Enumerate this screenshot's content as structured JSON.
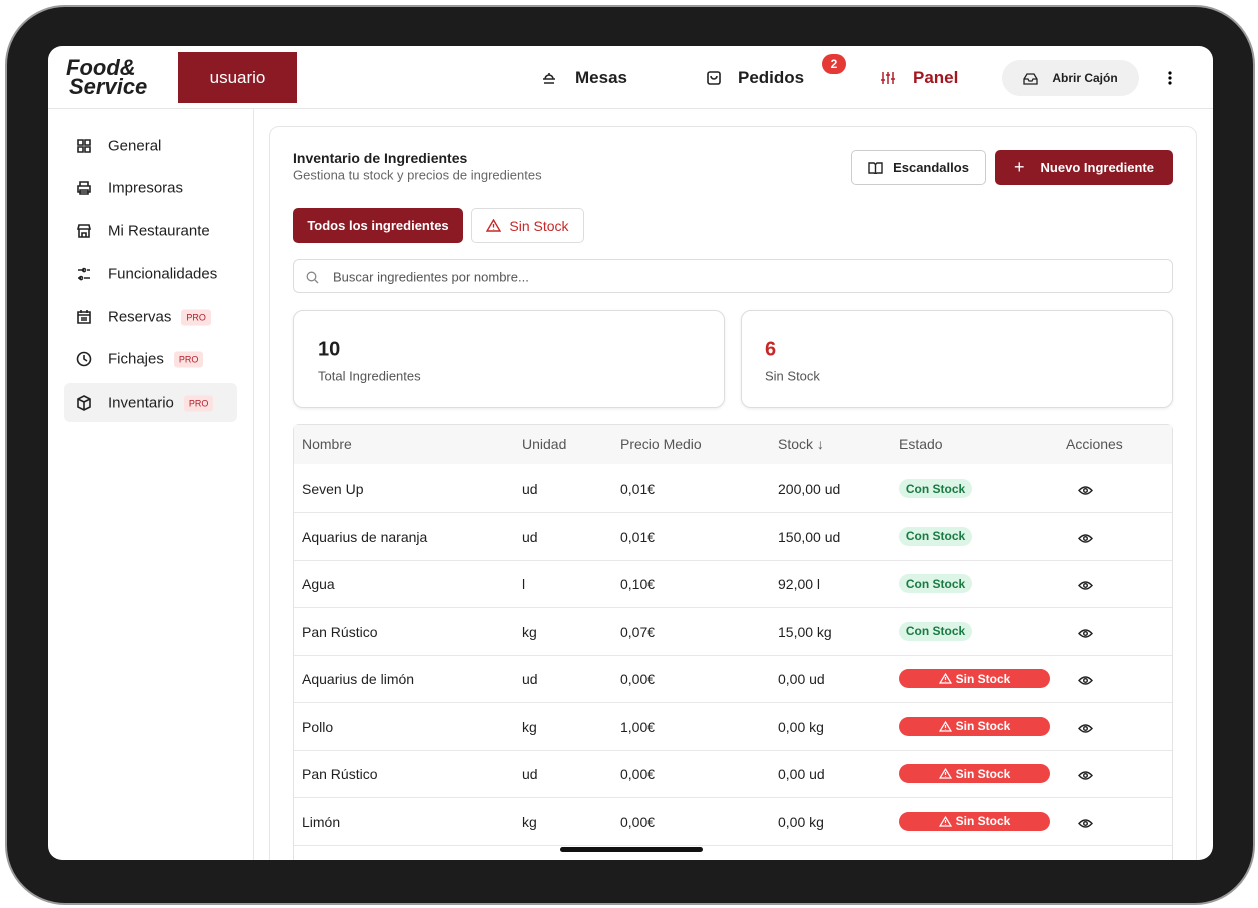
{
  "header": {
    "logo": [
      "Food&",
      "Service"
    ],
    "user": "usuario",
    "nav": [
      {
        "label": "Mesas"
      },
      {
        "label": "Pedidos",
        "badge": 2
      },
      {
        "label": "Panel"
      }
    ],
    "drawer_button": "Abrir Cajón"
  },
  "sidebar": [
    {
      "label": "General"
    },
    {
      "label": "Impresoras"
    },
    {
      "label": "Mi Restaurante"
    },
    {
      "label": "Funcionalidades"
    },
    {
      "label": "Reservas",
      "tag": "PRO"
    },
    {
      "label": "Fichajes",
      "tag": "PRO"
    },
    {
      "label": "Inventario",
      "tag": "PRO"
    }
  ],
  "main": {
    "title": "Inventario de Ingredientes",
    "subtitle": "Gestiona tu stock y precios de ingredientes",
    "buttons": [
      "Escandallos",
      "Nuevo Ingrediente"
    ],
    "filters": [
      {
        "label": "Todos los ingredientes"
      },
      {
        "label": "Sin Stock"
      }
    ],
    "search_placeholder": "Buscar ingredientes por nombre...",
    "stats": [
      {
        "value": 10,
        "label": "Total Ingredientes"
      },
      {
        "value": 6,
        "label": "Sin Stock"
      }
    ]
  },
  "table": {
    "columns": [
      "Nombre",
      "Unidad",
      "Precio Medio",
      "Stock ↓",
      "Estado",
      "Acciones"
    ],
    "rows": [
      [
        "Seven Up",
        "ud",
        "0,01€",
        "200,00 ud",
        "Con Stock"
      ],
      [
        "Aquarius de naranja",
        "ud",
        "0,01€",
        "150,00 ud",
        "Con Stock"
      ],
      [
        "Agua",
        "l",
        "0,10€",
        "92,00 l",
        "Con Stock"
      ],
      [
        "Pan Rústico",
        "kg",
        "0,07€",
        "15,00 kg",
        "Con Stock"
      ],
      [
        "Aquarius de limón",
        "ud",
        "0,00€",
        "0,00 ud",
        "Sin Stock"
      ],
      [
        "Pollo",
        "kg",
        "1,00€",
        "0,00 kg",
        "Sin Stock"
      ],
      [
        "Pan Rústico",
        "ud",
        "0,00€",
        "0,00 ud",
        "Sin Stock"
      ],
      [
        "Limón",
        "kg",
        "0,00€",
        "0,00 kg",
        "Sin Stock"
      ]
    ]
  }
}
